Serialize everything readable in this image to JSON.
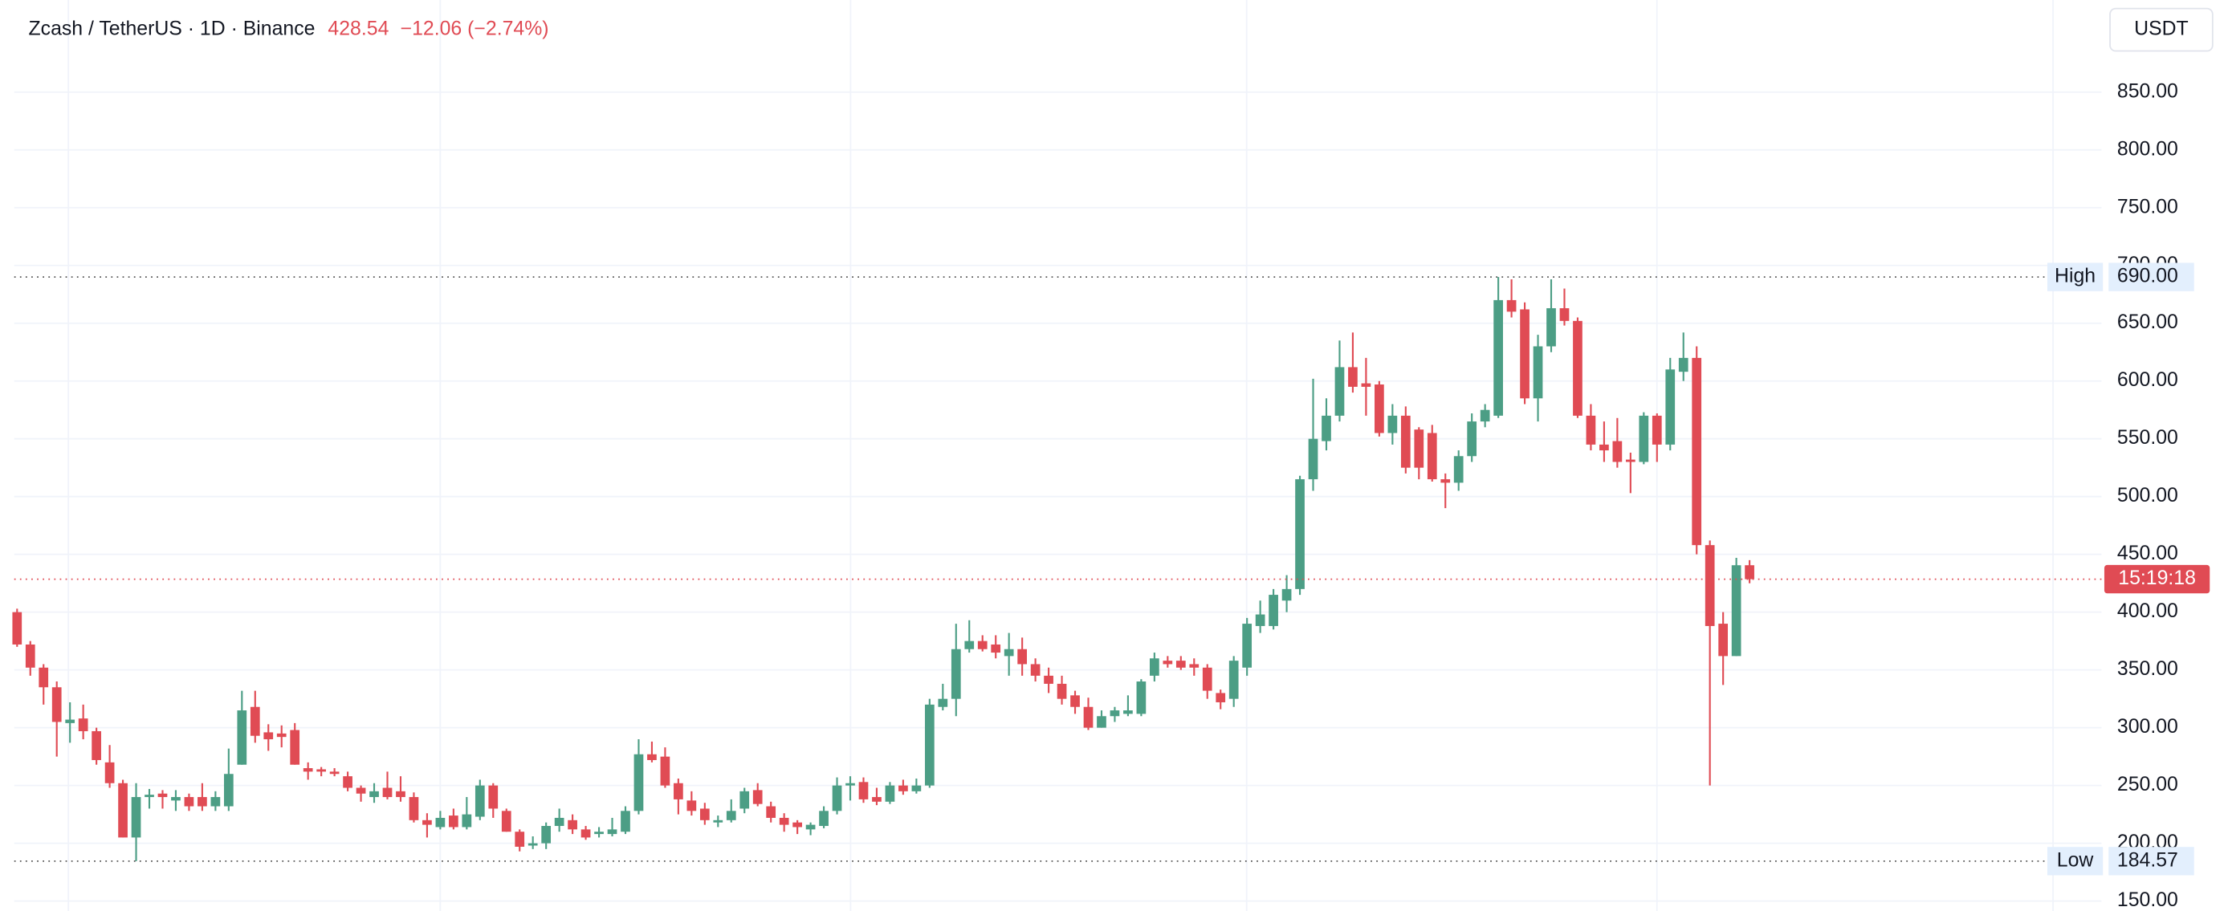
{
  "header": {
    "symbol": "Zcash / TetherUS · 1D · Binance",
    "last": 428.54,
    "change": {
      "value": -12.06,
      "label": "−12.06 (−2.74%)"
    }
  },
  "currency": "USDT",
  "chart_data": {
    "type": "candlestick",
    "up_color": "#4c9e85",
    "down_color": "#e04b54",
    "open": [
      400,
      372,
      352,
      335,
      304,
      308,
      297,
      270,
      252,
      205,
      240,
      243,
      237,
      240,
      240,
      232,
      232,
      268,
      318,
      296,
      295,
      298,
      265,
      264,
      262,
      258,
      248,
      240,
      248,
      245,
      240,
      220,
      214,
      224,
      214,
      223,
      250,
      228,
      210,
      198,
      200,
      215,
      220,
      212,
      208,
      208,
      210,
      228,
      277,
      275,
      252,
      237,
      230,
      218,
      220,
      230,
      246,
      232,
      222,
      218,
      212,
      215,
      228,
      250,
      253,
      240,
      236,
      250,
      245,
      250,
      318,
      325,
      368,
      375,
      372,
      362,
      368,
      355,
      345,
      338,
      328,
      318,
      300,
      310,
      312,
      312,
      345,
      358,
      358,
      355,
      352,
      330,
      325,
      352,
      388,
      388,
      410,
      420,
      515,
      548,
      570,
      612,
      598,
      597,
      555,
      570,
      558,
      555,
      515,
      512,
      535,
      565,
      570,
      670,
      662,
      585,
      630,
      663,
      652,
      570,
      545,
      548,
      532,
      530,
      570,
      545,
      608,
      620,
      458,
      390,
      362,
      440.6
    ],
    "high": [
      403,
      375,
      355,
      340,
      322,
      320,
      300,
      285,
      255,
      252,
      247,
      246,
      246,
      243,
      252,
      245,
      282,
      332,
      332,
      303,
      302,
      304,
      270,
      266,
      265,
      262,
      250,
      252,
      262,
      258,
      244,
      226,
      228,
      230,
      240,
      255,
      252,
      230,
      212,
      206,
      218,
      230,
      225,
      215,
      214,
      222,
      232,
      290,
      288,
      283,
      256,
      245,
      235,
      224,
      238,
      248,
      252,
      236,
      226,
      220,
      218,
      232,
      257,
      258,
      257,
      248,
      253,
      255,
      256,
      325,
      338,
      390,
      393,
      380,
      380,
      382,
      378,
      360,
      352,
      345,
      332,
      326,
      315,
      318,
      328,
      342,
      365,
      362,
      362,
      360,
      355,
      333,
      362,
      395,
      410,
      420,
      432,
      518,
      602,
      585,
      635,
      642,
      620,
      600,
      580,
      578,
      560,
      562,
      520,
      540,
      572,
      580,
      690,
      688,
      668,
      640,
      688,
      680,
      655,
      580,
      565,
      568,
      538,
      573,
      572,
      620,
      642,
      630,
      462,
      400,
      447,
      445
    ],
    "low": [
      370,
      345,
      320,
      275,
      287,
      290,
      268,
      248,
      205,
      184.57,
      230,
      230,
      228,
      228,
      228,
      228,
      228,
      268,
      287,
      280,
      283,
      268,
      255,
      258,
      258,
      245,
      236,
      235,
      238,
      236,
      218,
      205,
      212,
      212,
      212,
      220,
      222,
      210,
      193,
      195,
      195,
      210,
      208,
      203,
      205,
      206,
      208,
      225,
      270,
      248,
      225,
      224,
      216,
      214,
      218,
      226,
      232,
      218,
      210,
      208,
      207,
      213,
      225,
      237,
      235,
      233,
      234,
      242,
      243,
      248,
      315,
      310,
      365,
      366,
      360,
      345,
      345,
      340,
      330,
      320,
      312,
      298,
      300,
      305,
      310,
      310,
      340,
      352,
      350,
      345,
      325,
      316,
      318,
      345,
      382,
      385,
      400,
      415,
      505,
      540,
      565,
      590,
      570,
      552,
      545,
      520,
      515,
      513,
      490,
      505,
      530,
      560,
      568,
      655,
      580,
      565,
      625,
      648,
      568,
      540,
      530,
      525,
      503,
      528,
      530,
      540,
      600,
      450,
      250,
      337,
      362,
      425
    ],
    "close": [
      372,
      352,
      335,
      305,
      307,
      297,
      272,
      252,
      205,
      240,
      242,
      240,
      240,
      232,
      232,
      240,
      260,
      315,
      293,
      290,
      292,
      268,
      262,
      262,
      260,
      248,
      243,
      245,
      240,
      240,
      220,
      216,
      222,
      214,
      225,
      250,
      230,
      210,
      197,
      200,
      215,
      222,
      212,
      205,
      210,
      212,
      228,
      277,
      272,
      250,
      238,
      228,
      220,
      220,
      228,
      245,
      234,
      222,
      216,
      214,
      216,
      228,
      250,
      252,
      238,
      236,
      250,
      245,
      250,
      320,
      325,
      368,
      375,
      368,
      365,
      368,
      355,
      345,
      338,
      325,
      318,
      300,
      310,
      315,
      315,
      340,
      360,
      355,
      352,
      352,
      332,
      322,
      358,
      390,
      398,
      415,
      420,
      515,
      550,
      570,
      612,
      595,
      595,
      555,
      570,
      525,
      525,
      515,
      512,
      535,
      565,
      575,
      670,
      660,
      585,
      630,
      663,
      652,
      570,
      545,
      540,
      530,
      530,
      570,
      545,
      610,
      620,
      458,
      388,
      362,
      440.6,
      428.54
    ],
    "ylim": [
      141.4,
      929.7
    ],
    "yticks": [
      {
        "value": 150,
        "label": "150.00"
      },
      {
        "value": 200,
        "label": "200.00"
      },
      {
        "value": 250,
        "label": "250.00"
      },
      {
        "value": 300,
        "label": "300.00"
      },
      {
        "value": 350,
        "label": "350.00"
      },
      {
        "value": 400,
        "label": "400.00"
      },
      {
        "value": 450,
        "label": "450.00"
      },
      {
        "value": 500,
        "label": "500.00"
      },
      {
        "value": 550,
        "label": "550.00"
      },
      {
        "value": 600,
        "label": "600.00"
      },
      {
        "value": 650,
        "label": "650.00"
      },
      {
        "value": 700,
        "label": "700.00"
      },
      {
        "value": 750,
        "label": "750.00"
      },
      {
        "value": 800,
        "label": "800.00"
      },
      {
        "value": 850,
        "label": "850.00"
      }
    ],
    "grid": true,
    "high_marker": {
      "text": "High",
      "value": 690,
      "label": "690.00"
    },
    "low_marker": {
      "text": "Low",
      "value": 184.57
    },
    "countdown": "15:19:18"
  }
}
